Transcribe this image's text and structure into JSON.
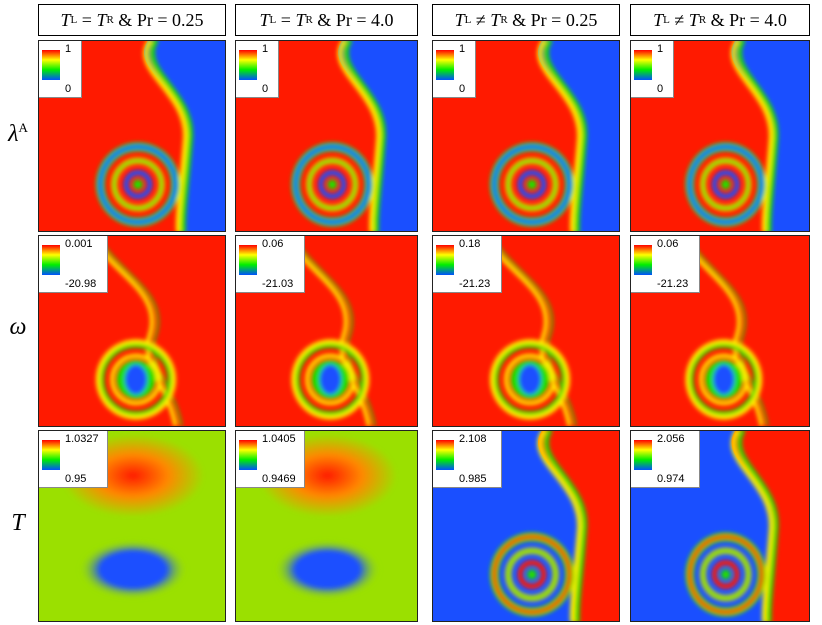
{
  "columns": [
    {
      "lhs": "T",
      "lsub": "L",
      "op": "=",
      "rhs": "T",
      "rsub": "R",
      "amp": "&",
      "pr": "Pr = 0.25"
    },
    {
      "lhs": "T",
      "lsub": "L",
      "op": "=",
      "rhs": "T",
      "rsub": "R",
      "amp": "&",
      "pr": "Pr = 4.0"
    },
    {
      "lhs": "T",
      "lsub": "L",
      "op": "≠",
      "rhs": "T",
      "rsub": "R",
      "amp": "&",
      "pr": "Pr = 0.25"
    },
    {
      "lhs": "T",
      "lsub": "L",
      "op": "≠",
      "rhs": "T",
      "rsub": "R",
      "amp": "&",
      "pr": "Pr = 4.0"
    }
  ],
  "rows": [
    {
      "symbol": "λ",
      "sup": "A"
    },
    {
      "symbol": "ω",
      "sup": ""
    },
    {
      "symbol": "T",
      "sup": ""
    }
  ],
  "legends": [
    [
      {
        "max": "1",
        "min": "0"
      },
      {
        "max": "1",
        "min": "0"
      },
      {
        "max": "1",
        "min": "0"
      },
      {
        "max": "1",
        "min": "0"
      }
    ],
    [
      {
        "max": "0.001",
        "min": "-20.98"
      },
      {
        "max": "0.06",
        "min": "-21.03"
      },
      {
        "max": "0.18",
        "min": "-21.23"
      },
      {
        "max": "0.06",
        "min": "-21.23"
      }
    ],
    [
      {
        "max": "1.0327",
        "min": "0.95"
      },
      {
        "max": "1.0405",
        "min": "0.9469"
      },
      {
        "max": "2.108",
        "min": "0.985"
      },
      {
        "max": "2.056",
        "min": "0.974"
      }
    ]
  ],
  "colors": {
    "red": "#ff1a00",
    "yellow": "#ffee00",
    "green": "#22dd00",
    "blue": "#1a4fff",
    "lightgreen": "#9be000",
    "orange": "#ff8800"
  }
}
